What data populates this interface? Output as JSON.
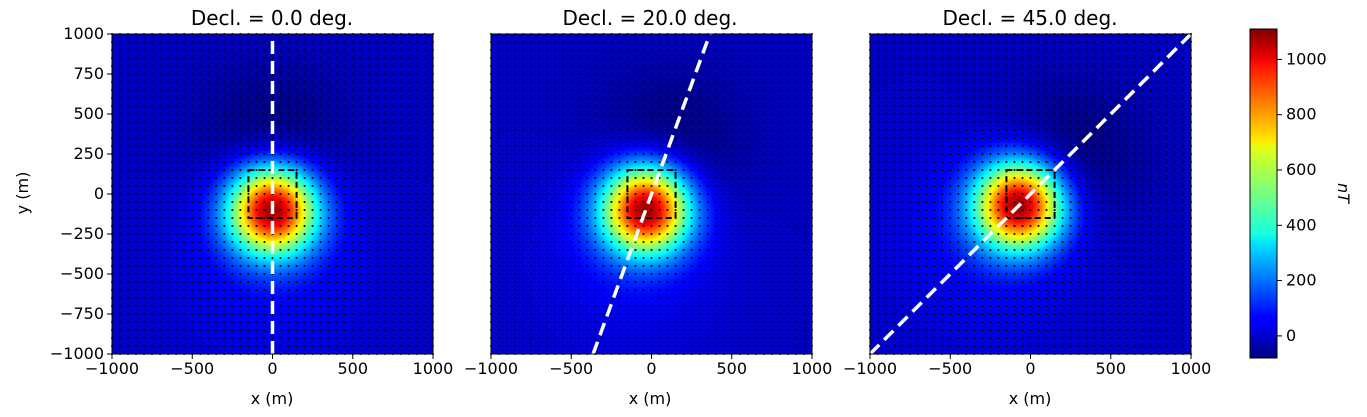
{
  "chart_data": {
    "type": "heatmap",
    "panels": [
      {
        "title": "Decl. = 0.0 deg.",
        "declination": 0.0
      },
      {
        "title": "Decl. = 20.0 deg.",
        "declination": 20.0
      },
      {
        "title": "Decl. = 45.0 deg.",
        "declination": 45.0
      }
    ],
    "xlabel": "x (m)",
    "ylabel": "y (m)",
    "xlim": [
      -1000,
      1000
    ],
    "ylim": [
      -1000,
      1000
    ],
    "x_ticks": [
      "−1000",
      "−500",
      "0",
      "500",
      "1000"
    ],
    "y_ticks": [
      "1000",
      "750",
      "500",
      "250",
      "0",
      "−250",
      "−500",
      "−750",
      "−1000"
    ],
    "block_outline": {
      "x": [
        -150,
        150
      ],
      "y": [
        -150,
        150
      ]
    },
    "colorbar": {
      "label": "nT",
      "range": [
        -80,
        1110
      ],
      "ticks": [
        "1000",
        "800",
        "600",
        "400",
        "200",
        "0"
      ],
      "colormap": "jet"
    },
    "profile_line_color": "#ffffff",
    "block_outline_color": "#000000",
    "observation_points_color": "#000000"
  }
}
